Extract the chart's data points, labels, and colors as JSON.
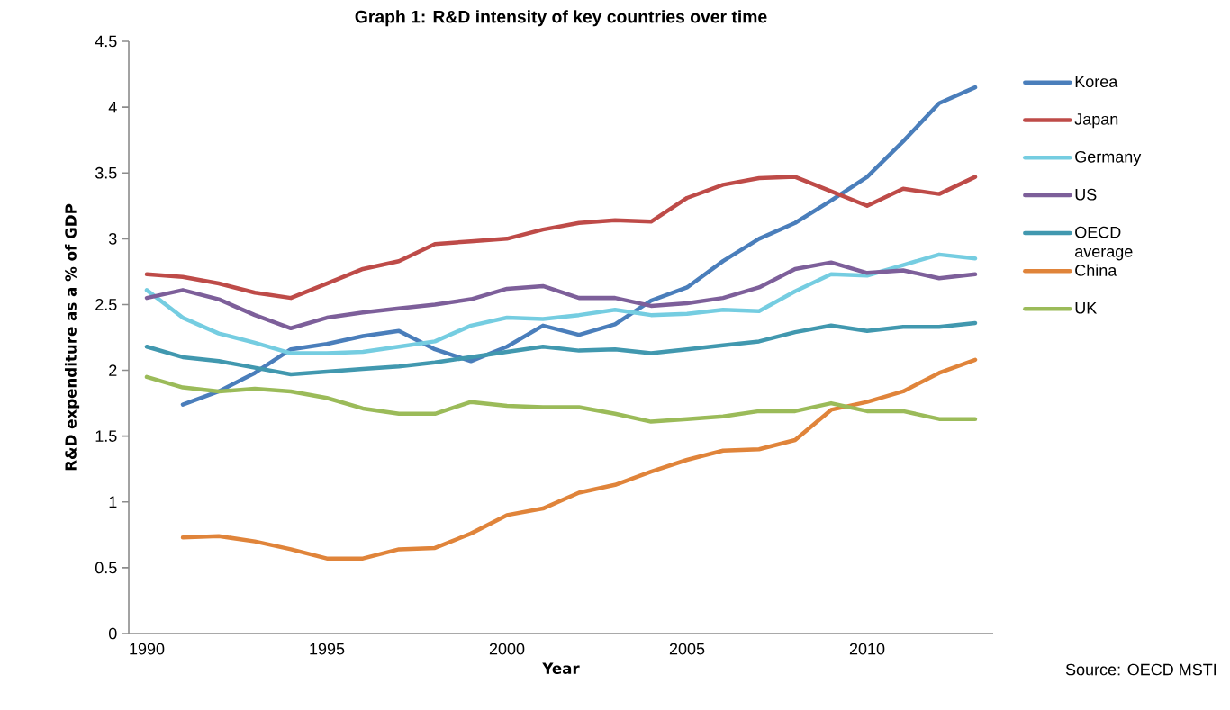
{
  "chart_data": {
    "type": "line",
    "title": "Graph 1: R&D intensity of key countries over time",
    "xlabel": "Year",
    "ylabel": "R&D expenditure as a % of GDP",
    "x": [
      1990,
      1991,
      1992,
      1993,
      1994,
      1995,
      1996,
      1997,
      1998,
      1999,
      2000,
      2001,
      2002,
      2003,
      2004,
      2005,
      2006,
      2007,
      2008,
      2009,
      2010,
      2011,
      2012,
      2013
    ],
    "xlim": [
      1989.5,
      2013.5
    ],
    "xticks": [
      1990,
      1995,
      2000,
      2005,
      2010
    ],
    "ylim": [
      0,
      4.5
    ],
    "yticks": [
      0,
      0.5,
      1,
      1.5,
      2,
      2.5,
      3,
      3.5,
      4,
      4.5
    ],
    "grid": false,
    "legend": "right",
    "marker": "none",
    "line_style": "solid",
    "series": [
      {
        "name": "Korea",
        "color": "#4a7ebb",
        "values": [
          null,
          1.74,
          1.84,
          1.98,
          2.16,
          2.2,
          2.26,
          2.3,
          2.16,
          2.07,
          2.18,
          2.34,
          2.27,
          2.35,
          2.53,
          2.63,
          2.83,
          3.0,
          3.12,
          3.29,
          3.47,
          3.74,
          4.03,
          4.15
        ]
      },
      {
        "name": "Japan",
        "color": "#be4b48",
        "values": [
          2.73,
          2.71,
          2.66,
          2.59,
          2.55,
          2.66,
          2.77,
          2.83,
          2.96,
          2.98,
          3.0,
          3.07,
          3.12,
          3.14,
          3.13,
          3.31,
          3.41,
          3.46,
          3.47,
          3.36,
          3.25,
          3.38,
          3.34,
          3.47
        ]
      },
      {
        "name": "Germany",
        "color": "#75cde1",
        "values": [
          2.61,
          2.4,
          2.28,
          2.21,
          2.13,
          2.13,
          2.14,
          2.18,
          2.22,
          2.34,
          2.4,
          2.39,
          2.42,
          2.46,
          2.42,
          2.43,
          2.46,
          2.45,
          2.6,
          2.73,
          2.72,
          2.8,
          2.88,
          2.85
        ]
      },
      {
        "name": "US",
        "color": "#7d5f9a",
        "values": [
          2.55,
          2.61,
          2.54,
          2.42,
          2.32,
          2.4,
          2.44,
          2.47,
          2.5,
          2.54,
          2.62,
          2.64,
          2.55,
          2.55,
          2.49,
          2.51,
          2.55,
          2.63,
          2.77,
          2.82,
          2.74,
          2.76,
          2.7,
          2.73
        ]
      },
      {
        "name": "OECD average",
        "color": "#4198af",
        "values": [
          2.18,
          2.1,
          2.07,
          2.02,
          1.97,
          1.99,
          2.01,
          2.03,
          2.06,
          2.1,
          2.14,
          2.18,
          2.15,
          2.16,
          2.13,
          2.16,
          2.19,
          2.22,
          2.29,
          2.34,
          2.3,
          2.33,
          2.33,
          2.36
        ]
      },
      {
        "name": "China",
        "color": "#e0843a",
        "values": [
          null,
          0.73,
          0.74,
          0.7,
          0.64,
          0.57,
          0.57,
          0.64,
          0.65,
          0.76,
          0.9,
          0.95,
          1.07,
          1.13,
          1.23,
          1.32,
          1.39,
          1.4,
          1.47,
          1.7,
          1.76,
          1.84,
          1.98,
          2.08
        ]
      },
      {
        "name": "UK",
        "color": "#9bbb59",
        "values": [
          1.95,
          1.87,
          1.84,
          1.86,
          1.84,
          1.79,
          1.71,
          1.67,
          1.67,
          1.76,
          1.73,
          1.72,
          1.72,
          1.67,
          1.61,
          1.63,
          1.65,
          1.69,
          1.69,
          1.75,
          1.69,
          1.69,
          1.63,
          1.63
        ]
      }
    ],
    "annotations": [
      "Source: OECD MSTI"
    ]
  }
}
